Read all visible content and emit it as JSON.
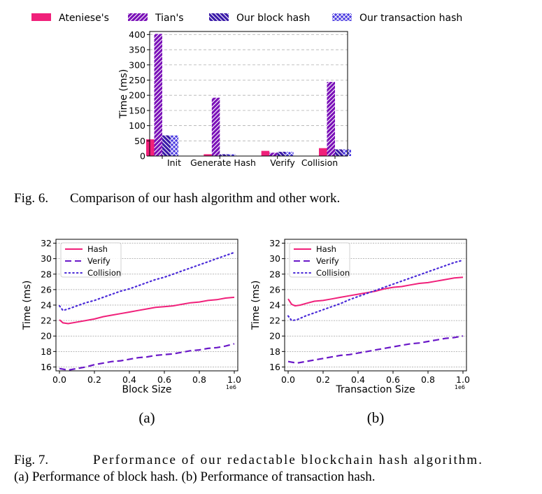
{
  "fig6": {
    "caption_label": "Fig. 6.",
    "caption_text": "Comparison of our hash algorithm and other work.",
    "chart_data": {
      "type": "bar",
      "categories": [
        "Init",
        "Generate Hash",
        "Verify",
        "Collision"
      ],
      "ylabel": "Time (ms)",
      "ylim": [
        0,
        400
      ],
      "yticks": [
        0,
        50,
        100,
        150,
        200,
        250,
        300,
        350,
        400
      ],
      "grid": true,
      "legend_position": "top",
      "series": [
        {
          "name": "Ateniese's",
          "color": "#f0207a",
          "pattern": "solid",
          "values": [
            55,
            6,
            17,
            26
          ]
        },
        {
          "name": "Tian's",
          "color": "#7a10b8",
          "pattern": "diagonal",
          "values": [
            402,
            192,
            11,
            244
          ]
        },
        {
          "name": "Our block hash",
          "color": "#3a1aa8",
          "pattern": "backdiagonal",
          "values": [
            68,
            6,
            14,
            22
          ]
        },
        {
          "name": "Our transaction hash",
          "color": "#4a3ae0",
          "pattern": "crosshatch",
          "values": [
            68,
            6,
            14,
            22
          ]
        }
      ]
    }
  },
  "fig7": {
    "caption_label": "Fig. 7.",
    "caption_line1": "Performance of our redactable blockchain hash algorithm.",
    "caption_line2": "(a) Performance of block hash. (b) Performance of transaction hash.",
    "panels": [
      {
        "sublabel": "(a)",
        "chart_data": {
          "type": "line",
          "xlabel": "Block Size",
          "ylabel": "Time (ms)",
          "x_multiplier": "1e6",
          "xlim": [
            -0.02,
            1.02
          ],
          "ylim": [
            15.5,
            32.5
          ],
          "xticks": [
            "0.0",
            "0.2",
            "0.4",
            "0.6",
            "0.8",
            "1.0"
          ],
          "yticks": [
            16,
            18,
            20,
            22,
            24,
            26,
            28,
            30,
            32
          ],
          "legend_position": "top-left",
          "series": [
            {
              "name": "Hash",
              "style": "solid",
              "color": "#f0207a",
              "x": [
                0.0,
                0.02,
                0.05,
                0.1,
                0.15,
                0.2,
                0.25,
                0.3,
                0.35,
                0.4,
                0.45,
                0.5,
                0.55,
                0.6,
                0.65,
                0.7,
                0.75,
                0.8,
                0.85,
                0.9,
                0.95,
                1.0
              ],
              "y": [
                22.1,
                21.7,
                21.6,
                21.8,
                22.0,
                22.2,
                22.5,
                22.7,
                22.9,
                23.1,
                23.3,
                23.5,
                23.7,
                23.8,
                23.9,
                24.1,
                24.3,
                24.4,
                24.6,
                24.7,
                24.9,
                25.0
              ]
            },
            {
              "name": "Verify",
              "style": "dashed",
              "color": "#6a18c8",
              "x": [
                0.0,
                0.05,
                0.1,
                0.15,
                0.2,
                0.25,
                0.3,
                0.35,
                0.4,
                0.45,
                0.5,
                0.55,
                0.6,
                0.65,
                0.7,
                0.75,
                0.8,
                0.85,
                0.9,
                0.95,
                1.0
              ],
              "y": [
                15.8,
                15.6,
                15.8,
                16.0,
                16.3,
                16.5,
                16.7,
                16.8,
                17.0,
                17.2,
                17.3,
                17.5,
                17.6,
                17.7,
                17.9,
                18.1,
                18.2,
                18.4,
                18.5,
                18.7,
                19.0
              ]
            },
            {
              "name": "Collision",
              "style": "dotted",
              "color": "#4a2ad8",
              "x": [
                0.0,
                0.02,
                0.05,
                0.1,
                0.15,
                0.2,
                0.25,
                0.3,
                0.35,
                0.4,
                0.45,
                0.5,
                0.55,
                0.6,
                0.65,
                0.7,
                0.75,
                0.8,
                0.85,
                0.9,
                0.95,
                1.0
              ],
              "y": [
                23.9,
                23.3,
                23.5,
                23.9,
                24.3,
                24.6,
                25.0,
                25.4,
                25.8,
                26.1,
                26.5,
                26.9,
                27.3,
                27.6,
                28.0,
                28.4,
                28.8,
                29.2,
                29.6,
                30.0,
                30.4,
                30.8
              ]
            }
          ]
        }
      },
      {
        "sublabel": "(b)",
        "chart_data": {
          "type": "line",
          "xlabel": "Transaction Size",
          "ylabel": "Time (ms)",
          "x_multiplier": "1e6",
          "xlim": [
            -0.02,
            1.02
          ],
          "ylim": [
            15.5,
            32.5
          ],
          "xticks": [
            "0.0",
            "0.2",
            "0.4",
            "0.6",
            "0.8",
            "1.0"
          ],
          "yticks": [
            16,
            18,
            20,
            22,
            24,
            26,
            28,
            30,
            32
          ],
          "legend_position": "top-left",
          "series": [
            {
              "name": "Hash",
              "style": "solid",
              "color": "#f0207a",
              "x": [
                0.0,
                0.02,
                0.04,
                0.07,
                0.1,
                0.15,
                0.2,
                0.25,
                0.3,
                0.35,
                0.4,
                0.45,
                0.5,
                0.55,
                0.6,
                0.65,
                0.7,
                0.75,
                0.8,
                0.85,
                0.9,
                0.95,
                1.0
              ],
              "y": [
                24.8,
                24.1,
                23.9,
                24.0,
                24.2,
                24.5,
                24.6,
                24.8,
                25.0,
                25.2,
                25.4,
                25.6,
                25.8,
                26.1,
                26.3,
                26.4,
                26.6,
                26.8,
                26.9,
                27.1,
                27.3,
                27.5,
                27.6
              ]
            },
            {
              "name": "Verify",
              "style": "dashed",
              "color": "#6a18c8",
              "x": [
                0.0,
                0.05,
                0.1,
                0.15,
                0.2,
                0.25,
                0.3,
                0.35,
                0.4,
                0.45,
                0.5,
                0.55,
                0.6,
                0.65,
                0.7,
                0.75,
                0.8,
                0.85,
                0.9,
                0.95,
                1.0
              ],
              "y": [
                16.7,
                16.5,
                16.7,
                16.9,
                17.1,
                17.3,
                17.5,
                17.6,
                17.8,
                18.0,
                18.2,
                18.4,
                18.6,
                18.8,
                19.0,
                19.1,
                19.3,
                19.5,
                19.7,
                19.8,
                20.0
              ]
            },
            {
              "name": "Collision",
              "style": "dotted",
              "color": "#4a2ad8",
              "x": [
                0.0,
                0.02,
                0.05,
                0.1,
                0.15,
                0.2,
                0.25,
                0.3,
                0.35,
                0.4,
                0.45,
                0.5,
                0.55,
                0.6,
                0.65,
                0.7,
                0.75,
                0.8,
                0.85,
                0.9,
                0.95,
                1.0
              ],
              "y": [
                22.6,
                22.0,
                22.1,
                22.6,
                23.0,
                23.4,
                23.8,
                24.2,
                24.7,
                25.1,
                25.5,
                25.9,
                26.3,
                26.7,
                27.1,
                27.5,
                27.9,
                28.3,
                28.7,
                29.1,
                29.5,
                29.8
              ]
            }
          ]
        }
      }
    ]
  }
}
